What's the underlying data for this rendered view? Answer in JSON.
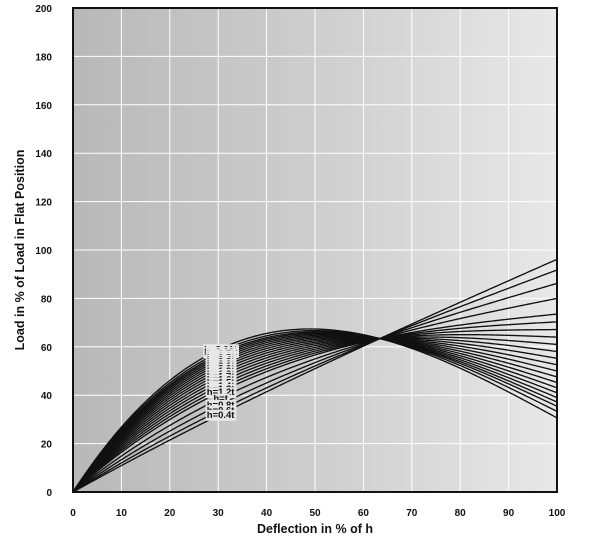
{
  "chart_data": {
    "type": "line",
    "title": "",
    "xlabel": "Deflection  in % of h",
    "ylabel": "Load in % of Load in Flat Position",
    "xlim": [
      0,
      100
    ],
    "ylim": [
      0,
      200
    ],
    "x_ticks": [
      "0",
      "10",
      "20",
      "30",
      "40",
      "50",
      "60",
      "70",
      "80",
      "90",
      "100"
    ],
    "y_ticks": [
      "0",
      "20",
      "40",
      "60",
      "80",
      "100",
      "120",
      "140",
      "160",
      "180",
      "200"
    ],
    "grid": true,
    "legend": "none",
    "series": [
      {
        "name": "h=3.01t",
        "ratio": 3.01
      },
      {
        "name": "h=2.83t",
        "ratio": 2.83
      },
      {
        "name": "h=2.7t",
        "ratio": 2.7
      },
      {
        "name": "h=2.6t",
        "ratio": 2.6
      },
      {
        "name": "h=2.5t",
        "ratio": 2.5
      },
      {
        "name": "h=2.4t",
        "ratio": 2.4
      },
      {
        "name": "h=2.3t",
        "ratio": 2.3
      },
      {
        "name": "h=2.2t",
        "ratio": 2.2
      },
      {
        "name": "h=2.1t",
        "ratio": 2.1
      },
      {
        "name": "h=2.0t",
        "ratio": 2.0
      },
      {
        "name": "h=1.9t",
        "ratio": 1.9
      },
      {
        "name": "h=1.8t",
        "ratio": 1.8
      },
      {
        "name": "h=1.7t",
        "ratio": 1.7
      },
      {
        "name": "h=1.6t",
        "ratio": 1.6
      },
      {
        "name": "h=1.5t",
        "ratio": 1.5
      },
      {
        "name": "h=1.4t",
        "ratio": 1.4
      },
      {
        "name": "h=1.3t",
        "ratio": 1.3
      },
      {
        "name": "h=1.2t",
        "ratio": 1.2
      },
      {
        "name": "h=t",
        "ratio": 1.0
      },
      {
        "name": "h=0.8t",
        "ratio": 0.8
      },
      {
        "name": "h=0.6t",
        "ratio": 0.6
      },
      {
        "name": "h=0.4t",
        "ratio": 0.4
      }
    ]
  }
}
